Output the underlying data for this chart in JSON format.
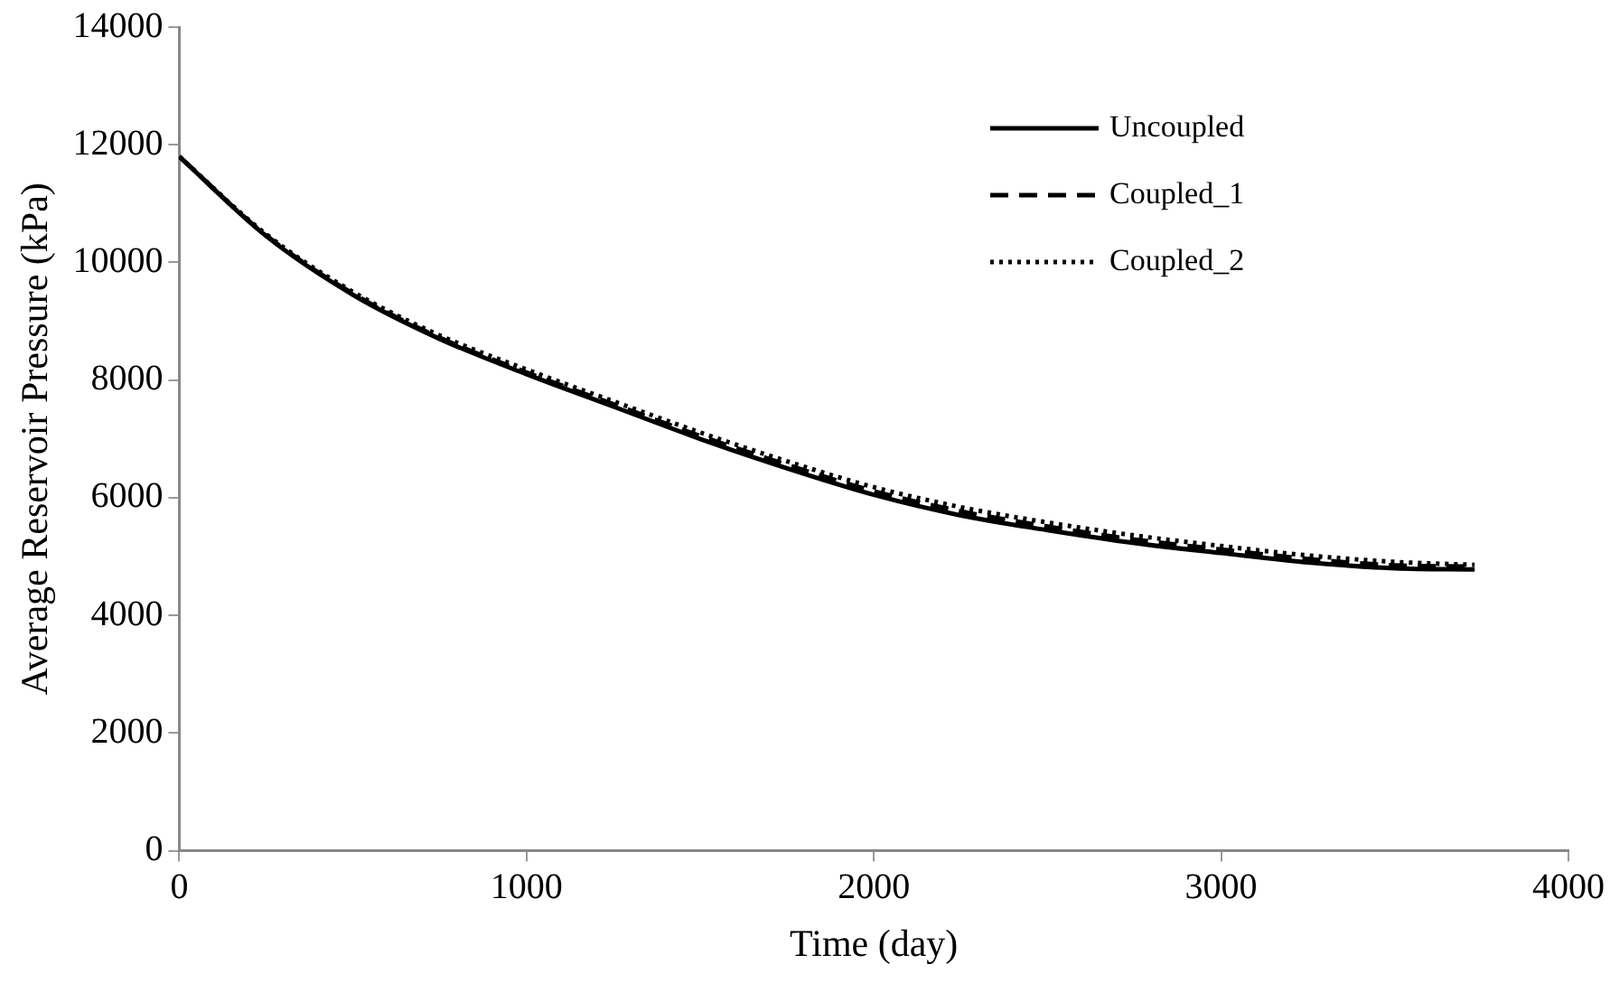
{
  "chart_data": {
    "type": "line",
    "xlabel": "Time (day)",
    "ylabel": "Average Reservoir Pressure (kPa)",
    "x": [
      0,
      250,
      500,
      750,
      1000,
      1250,
      1500,
      1750,
      2000,
      2250,
      2500,
      2750,
      3000,
      3250,
      3500,
      3730
    ],
    "xlim": [
      0,
      4000
    ],
    "xticks": [
      0,
      1000,
      2000,
      3000,
      4000
    ],
    "ylim": [
      0,
      14000
    ],
    "yticks": [
      0,
      2000,
      4000,
      6000,
      8000,
      10000,
      12000,
      14000
    ],
    "grid": false,
    "legend": "top right",
    "marker": "none",
    "series": [
      {
        "name": "Uncoupled",
        "color": "#000000",
        "line_style": "solid",
        "values": [
          11800,
          10450,
          9450,
          8700,
          8100,
          7550,
          7000,
          6500,
          6050,
          5700,
          5450,
          5230,
          5060,
          4900,
          4800,
          4780
        ]
      },
      {
        "name": "Coupled_1",
        "color": "#000000",
        "line_style": "dashed",
        "values": [
          11800,
          10460,
          9470,
          8720,
          8130,
          7590,
          7050,
          6560,
          6110,
          5770,
          5510,
          5290,
          5120,
          4960,
          4850,
          4830
        ]
      },
      {
        "name": "Coupled_2",
        "color": "#000000",
        "line_style": "dotted",
        "values": [
          11800,
          10480,
          9500,
          8760,
          8180,
          7640,
          7110,
          6620,
          6180,
          5840,
          5580,
          5360,
          5180,
          5020,
          4910,
          4860
        ]
      }
    ]
  }
}
